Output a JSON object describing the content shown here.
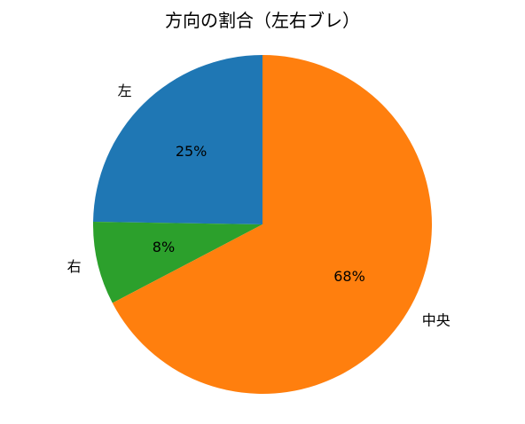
{
  "chart_data": {
    "type": "pie",
    "title": "方向の割合（左右ブレ）",
    "start_angle_deg": 90,
    "direction": "counterclockwise",
    "slices": [
      {
        "label": "左",
        "value": 25,
        "pct_label": "25%",
        "color": "#1f77b4"
      },
      {
        "label": "右",
        "value": 8,
        "pct_label": "8%",
        "color": "#2ca02c"
      },
      {
        "label": "中央",
        "value": 68,
        "pct_label": "68%",
        "color": "#ff7f0e"
      }
    ]
  }
}
